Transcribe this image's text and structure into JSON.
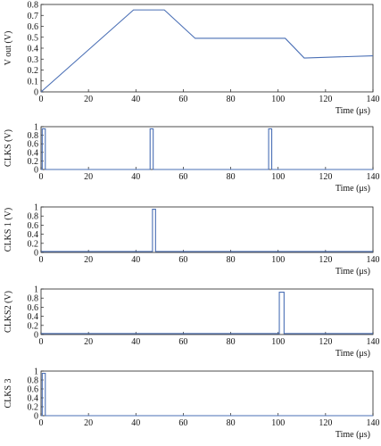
{
  "chart_data": [
    {
      "type": "line",
      "ylabel": "V out (V)",
      "xlabel": "Time (μs)",
      "xlim": [
        0,
        140
      ],
      "ylim": [
        0,
        0.8
      ],
      "xticks": [
        0,
        20,
        40,
        60,
        80,
        100,
        120,
        140
      ],
      "yticks": [
        0,
        0.1,
        0.2,
        0.3,
        0.4,
        0.5,
        0.6,
        0.7,
        0.8
      ],
      "ytick_labels": [
        "0",
        "0.1",
        "0.2",
        "0.3",
        "0.4",
        "0.5",
        "0.6",
        "0.7",
        "0.8"
      ],
      "color": "#4a6fb5",
      "series": [
        {
          "x": [
            0,
            39,
            52,
            65,
            103,
            111,
            140
          ],
          "y": [
            0,
            0.75,
            0.75,
            0.49,
            0.49,
            0.31,
            0.33
          ]
        }
      ]
    },
    {
      "type": "line",
      "ylabel": "CLKS (V)",
      "xlabel": "Time (μs)",
      "xlim": [
        0,
        140
      ],
      "ylim": [
        0,
        1
      ],
      "xticks": [
        0,
        20,
        40,
        60,
        80,
        100,
        120,
        140
      ],
      "yticks": [
        0,
        0.2,
        0.4,
        0.6,
        0.8,
        1
      ],
      "ytick_labels": [
        "0",
        "0.2",
        "0.4",
        "0.6",
        "0.8",
        "1"
      ],
      "color": "#4a6fb5",
      "series": [
        {
          "x": [
            0,
            0.5,
            0.5,
            1.8,
            1.8,
            46,
            46,
            47.3,
            47.3,
            96,
            96,
            97.3,
            97.3,
            140
          ],
          "y": [
            0,
            0,
            0.95,
            0.95,
            0,
            0,
            0.95,
            0.95,
            0,
            0,
            0.95,
            0.95,
            0,
            0
          ]
        }
      ]
    },
    {
      "type": "line",
      "ylabel": "CLKS 1 (V)",
      "xlabel": "Time (μs)",
      "xlim": [
        0,
        140
      ],
      "ylim": [
        0,
        1
      ],
      "xticks": [
        0,
        20,
        40,
        60,
        80,
        100,
        120,
        140
      ],
      "yticks": [
        0,
        0.2,
        0.4,
        0.6,
        0.8,
        1
      ],
      "ytick_labels": [
        "0",
        "0.2",
        "0.4",
        "0.6",
        "0.8",
        "1"
      ],
      "color": "#4a6fb5",
      "series": [
        {
          "x": [
            0,
            47,
            47,
            48.3,
            48.3,
            140
          ],
          "y": [
            0.02,
            0.02,
            0.95,
            0.95,
            0.02,
            0.02
          ]
        }
      ]
    },
    {
      "type": "line",
      "ylabel": "CLKS2 (V)",
      "xlabel": "Time (μs)",
      "xlim": [
        0,
        140
      ],
      "ylim": [
        0,
        1
      ],
      "xticks": [
        0,
        20,
        40,
        60,
        80,
        100,
        120,
        140
      ],
      "yticks": [
        0,
        0.2,
        0.4,
        0.6,
        0.8,
        1
      ],
      "ytick_labels": [
        "0",
        "0.2",
        "0.4",
        "0.6",
        "0.8",
        "1"
      ],
      "color": "#4a6fb5",
      "series": [
        {
          "x": [
            0,
            100.5,
            100.5,
            102.5,
            102.5,
            140
          ],
          "y": [
            0.02,
            0.02,
            0.93,
            0.93,
            0.02,
            0.02
          ]
        }
      ]
    },
    {
      "type": "line",
      "ylabel": "CLKS 3",
      "xlabel": "Time (μs)",
      "xlim": [
        0,
        140
      ],
      "ylim": [
        0,
        1
      ],
      "xticks": [
        0,
        20,
        40,
        60,
        80,
        100,
        120,
        140
      ],
      "yticks": [
        0,
        0.2,
        0.4,
        0.6,
        0.8,
        1
      ],
      "ytick_labels": [
        "0",
        "0.2",
        "0.4",
        "0.6",
        "0.8",
        "1"
      ],
      "color": "#4a6fb5",
      "series": [
        {
          "x": [
            0,
            0.5,
            0.5,
            1.8,
            1.8,
            140
          ],
          "y": [
            0,
            0,
            0.95,
            0.95,
            0,
            0
          ]
        }
      ]
    }
  ]
}
